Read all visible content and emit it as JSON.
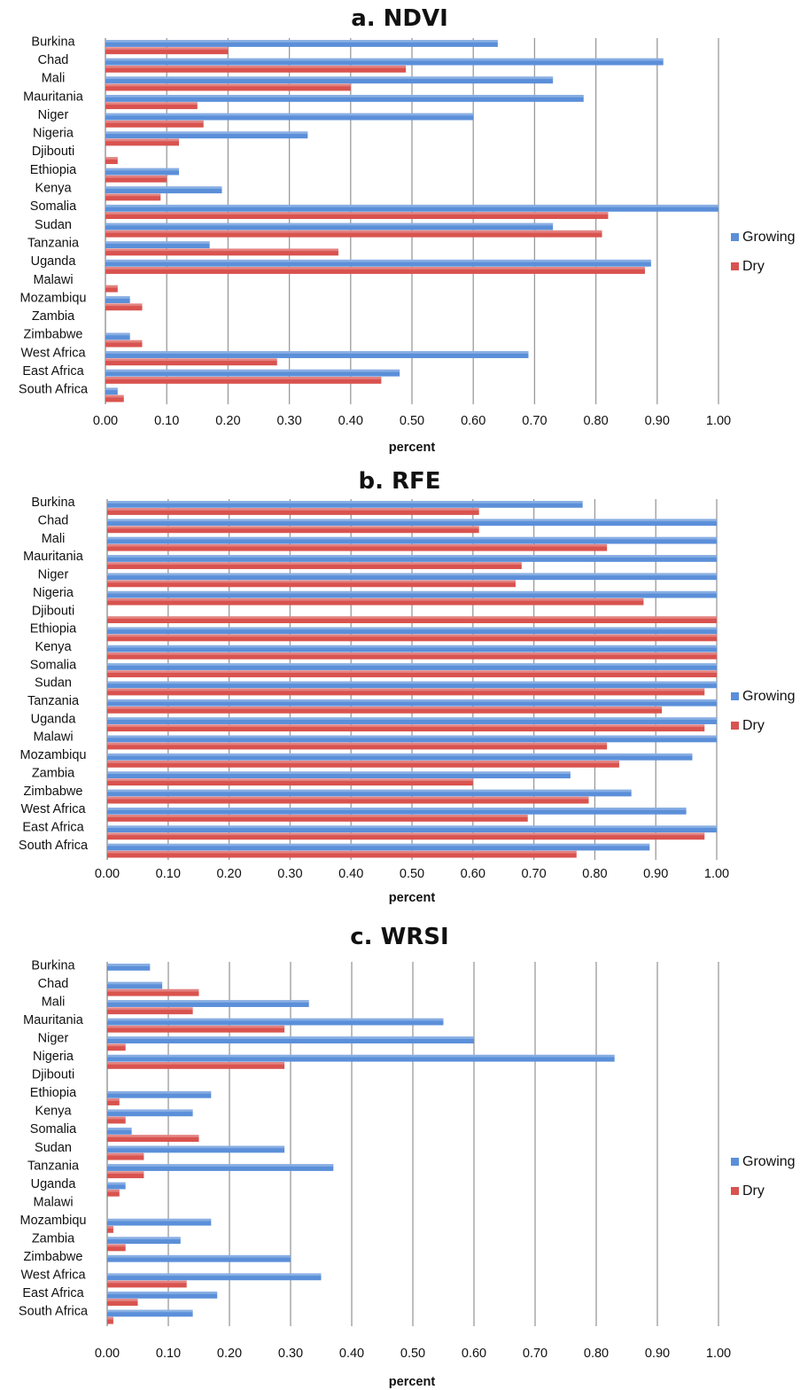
{
  "chart_data": [
    {
      "type": "bar",
      "orientation": "horizontal",
      "title": "a. NDVI",
      "xlabel": "percent",
      "ylabel": "",
      "xlim": [
        0,
        1
      ],
      "grid": true,
      "legend_position": "right",
      "tick_labels": [
        "0.00",
        "0.10",
        "0.20",
        "0.30",
        "0.40",
        "0.50",
        "0.60",
        "0.70",
        "0.80",
        "0.90",
        "1.00"
      ],
      "categories": [
        "Burkina",
        "Chad",
        "Mali",
        "Mauritania",
        "Niger",
        "Nigeria",
        "Djibouti",
        "Ethiopia",
        "Kenya",
        "Somalia",
        "Sudan",
        "Tanzania",
        "Uganda",
        "Malawi",
        "Mozambiqu",
        "Zambia",
        "Zimbabwe",
        "West Africa",
        "East Africa",
        "South Africa"
      ],
      "series": [
        {
          "name": "Growing",
          "color": "#5b8fd9",
          "values": [
            0.64,
            0.91,
            0.73,
            0.78,
            0.6,
            0.33,
            0.0,
            0.12,
            0.19,
            1.0,
            0.73,
            0.17,
            0.89,
            0.0,
            0.04,
            0.0,
            0.04,
            0.69,
            0.48,
            0.02
          ]
        },
        {
          "name": "Dry",
          "color": "#d9534f",
          "values": [
            0.2,
            0.49,
            0.4,
            0.15,
            0.16,
            0.12,
            0.02,
            0.1,
            0.09,
            0.82,
            0.81,
            0.38,
            0.88,
            0.02,
            0.06,
            0.0,
            0.06,
            0.28,
            0.45,
            0.03
          ]
        }
      ]
    },
    {
      "type": "bar",
      "orientation": "horizontal",
      "title": "b. RFE",
      "xlabel": "percent",
      "ylabel": "",
      "xlim": [
        0,
        1
      ],
      "grid": true,
      "legend_position": "right",
      "tick_labels": [
        "0.00",
        "0.10",
        "0.20",
        "0.30",
        "0.40",
        "0.50",
        "0.60",
        "0.70",
        "0.80",
        "0.90",
        "1.00"
      ],
      "categories": [
        "Burkina",
        "Chad",
        "Mali",
        "Mauritania",
        "Niger",
        "Nigeria",
        "Djibouti",
        "Ethiopia",
        "Kenya",
        "Somalia",
        "Sudan",
        "Tanzania",
        "Uganda",
        "Malawi",
        "Mozambiqu",
        "Zambia",
        "Zimbabwe",
        "West Africa",
        "East Africa",
        "South Africa"
      ],
      "series": [
        {
          "name": "Growing",
          "color": "#5b8fd9",
          "values": [
            0.78,
            1.0,
            1.0,
            1.0,
            1.0,
            1.0,
            0.0,
            1.0,
            1.0,
            1.0,
            1.0,
            1.0,
            1.0,
            1.0,
            0.96,
            0.76,
            0.86,
            0.95,
            1.0,
            0.89
          ]
        },
        {
          "name": "Dry",
          "color": "#d9534f",
          "values": [
            0.61,
            0.61,
            0.82,
            0.68,
            0.67,
            0.88,
            1.0,
            1.0,
            1.0,
            1.0,
            0.98,
            0.91,
            0.98,
            0.82,
            0.84,
            0.6,
            0.79,
            0.69,
            0.98,
            0.77
          ]
        }
      ]
    },
    {
      "type": "bar",
      "orientation": "horizontal",
      "title": "c. WRSI",
      "xlabel": "percent",
      "ylabel": "",
      "xlim": [
        0,
        1
      ],
      "grid": true,
      "legend_position": "right",
      "tick_labels": [
        "0.00",
        "0.10",
        "0.20",
        "0.30",
        "0.40",
        "0.50",
        "0.60",
        "0.70",
        "0.80",
        "0.90",
        "1.00"
      ],
      "categories": [
        "Burkina",
        "Chad",
        "Mali",
        "Mauritania",
        "Niger",
        "Nigeria",
        "Djibouti",
        "Ethiopia",
        "Kenya",
        "Somalia",
        "Sudan",
        "Tanzania",
        "Uganda",
        "Malawi",
        "Mozambiqu",
        "Zambia",
        "Zimbabwe",
        "West Africa",
        "East Africa",
        "South Africa"
      ],
      "series": [
        {
          "name": "Growing",
          "color": "#5b8fd9",
          "values": [
            0.07,
            0.09,
            0.33,
            0.55,
            0.6,
            0.83,
            0.0,
            0.17,
            0.14,
            0.04,
            0.29,
            0.37,
            0.03,
            0.0,
            0.17,
            0.12,
            0.3,
            0.35,
            0.18,
            0.14
          ]
        },
        {
          "name": "Dry",
          "color": "#d9534f",
          "values": [
            0.0,
            0.15,
            0.14,
            0.29,
            0.03,
            0.29,
            0.0,
            0.02,
            0.03,
            0.15,
            0.06,
            0.06,
            0.02,
            0.0,
            0.01,
            0.03,
            0.0,
            0.13,
            0.05,
            0.01
          ]
        }
      ]
    }
  ]
}
